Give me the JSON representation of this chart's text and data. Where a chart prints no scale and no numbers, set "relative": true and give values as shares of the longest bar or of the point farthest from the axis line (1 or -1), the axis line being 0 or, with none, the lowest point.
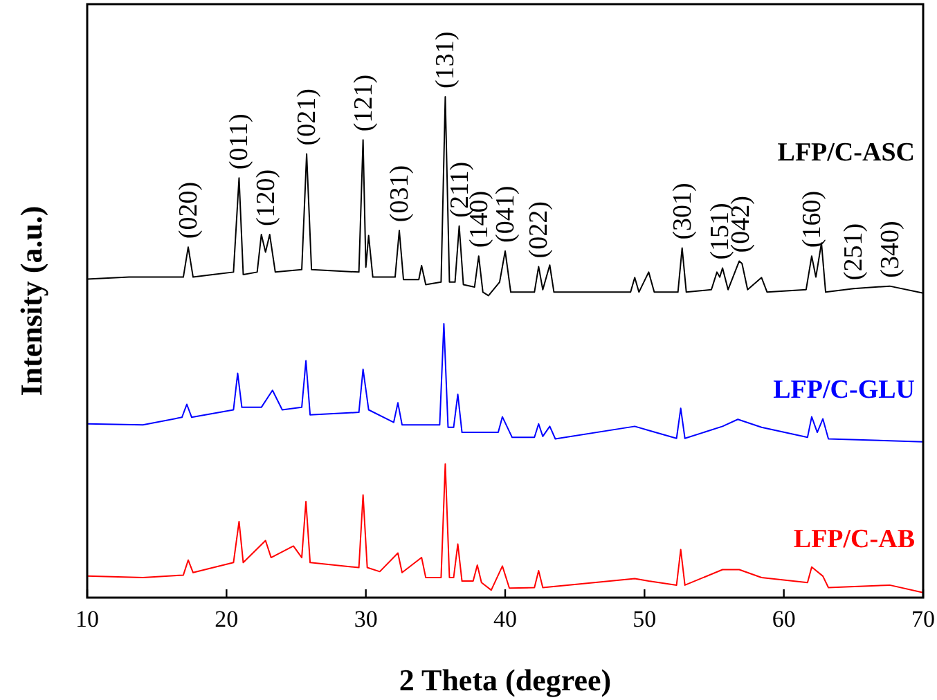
{
  "chart_data": {
    "type": "line",
    "relative": true,
    "xlabel": "2 Theta (degree)",
    "ylabel": "Intensity (a.u.)",
    "xlim": [
      10,
      70
    ],
    "xticks": [
      10,
      20,
      30,
      40,
      50,
      60,
      70
    ],
    "tick_labels": "x",
    "grid": false,
    "marker": "none",
    "line_style": "solid",
    "series": [
      {
        "name": "LFP/C-ASC",
        "color": "#000000",
        "x": [
          10,
          13,
          16,
          16.9,
          17.25,
          17.6,
          19,
          20.5,
          20.9,
          21.2,
          22.2,
          22.5,
          22.8,
          23.1,
          23.5,
          25.4,
          25.75,
          26.1,
          29.5,
          29.8,
          30.0,
          30.2,
          30.5,
          32.1,
          32.4,
          32.7,
          33.8,
          34.0,
          34.3,
          35.4,
          35.7,
          36.0,
          36.4,
          36.7,
          37.0,
          37.8,
          38.1,
          38.4,
          38.8,
          39.6,
          40.0,
          40.4,
          42.1,
          42.4,
          42.7,
          43.2,
          43.5,
          49.0,
          49.3,
          49.6,
          50.3,
          50.7,
          52.4,
          52.7,
          53.0,
          54.8,
          55.2,
          55.4,
          55.6,
          56.0,
          56.8,
          57.0,
          57.4,
          58.4,
          58.8,
          61.6,
          62.0,
          62.3,
          62.7,
          63.0,
          65.0,
          67.6,
          70
        ],
        "values": [
          0.636,
          0.64,
          0.64,
          0.64,
          0.7,
          0.64,
          0.645,
          0.65,
          0.838,
          0.645,
          0.65,
          0.725,
          0.69,
          0.725,
          0.65,
          0.655,
          0.886,
          0.655,
          0.65,
          0.914,
          0.66,
          0.723,
          0.64,
          0.64,
          0.733,
          0.635,
          0.635,
          0.663,
          0.625,
          0.63,
          1.0,
          0.63,
          0.63,
          0.742,
          0.625,
          0.62,
          0.682,
          0.61,
          0.603,
          0.63,
          0.692,
          0.61,
          0.61,
          0.661,
          0.615,
          0.664,
          0.61,
          0.61,
          0.639,
          0.61,
          0.65,
          0.61,
          0.61,
          0.698,
          0.61,
          0.615,
          0.65,
          0.64,
          0.658,
          0.615,
          0.672,
          0.667,
          0.615,
          0.639,
          0.61,
          0.615,
          0.682,
          0.64,
          0.708,
          0.61,
          0.617,
          0.622,
          0.608
        ]
      },
      {
        "name": "LFP/C-GLU",
        "color": "#0000ff",
        "x": [
          10,
          14,
          16.8,
          17.15,
          17.5,
          20.5,
          20.8,
          21.1,
          22.5,
          23.3,
          24,
          25.4,
          25.7,
          26.0,
          29.5,
          29.8,
          30.2,
          32.0,
          32.3,
          32.6,
          35.3,
          35.6,
          35.9,
          36.3,
          36.6,
          36.9,
          39.5,
          39.8,
          40.5,
          42.1,
          42.4,
          42.7,
          43.2,
          43.6,
          49.3,
          50.3,
          52.3,
          52.6,
          52.9,
          55.6,
          56.7,
          58.4,
          61.7,
          62.0,
          62.4,
          62.8,
          63.2,
          70
        ],
        "values": [
          0.347,
          0.345,
          0.36,
          0.386,
          0.36,
          0.375,
          0.448,
          0.38,
          0.38,
          0.414,
          0.375,
          0.38,
          0.473,
          0.365,
          0.37,
          0.456,
          0.375,
          0.35,
          0.389,
          0.345,
          0.345,
          0.547,
          0.34,
          0.34,
          0.406,
          0.33,
          0.33,
          0.361,
          0.32,
          0.32,
          0.347,
          0.322,
          0.342,
          0.317,
          0.342,
          0.334,
          0.318,
          0.378,
          0.318,
          0.342,
          0.356,
          0.34,
          0.32,
          0.361,
          0.33,
          0.357,
          0.317,
          0.311
        ]
      },
      {
        "name": "LFP/C-AB",
        "color": "#ff0000",
        "x": [
          10,
          14,
          16.9,
          17.25,
          17.6,
          20.5,
          20.9,
          21.2,
          22.8,
          23.2,
          24.8,
          25.4,
          25.7,
          26.0,
          29.5,
          29.8,
          30.1,
          31,
          32.3,
          32.6,
          34.0,
          34.3,
          35.4,
          35.7,
          36.0,
          36.3,
          36.6,
          36.9,
          37.7,
          38.0,
          38.3,
          39,
          39.8,
          40.3,
          42.1,
          42.4,
          42.7,
          49.3,
          50.3,
          52.3,
          52.6,
          52.9,
          55.6,
          56.8,
          58.4,
          61.7,
          62.0,
          62.8,
          63.2,
          67.6,
          70
        ],
        "values": [
          0.043,
          0.04,
          0.045,
          0.075,
          0.05,
          0.07,
          0.152,
          0.07,
          0.114,
          0.08,
          0.103,
          0.08,
          0.192,
          0.07,
          0.06,
          0.205,
          0.06,
          0.052,
          0.089,
          0.05,
          0.08,
          0.04,
          0.04,
          0.267,
          0.04,
          0.04,
          0.107,
          0.033,
          0.033,
          0.065,
          0.03,
          0.015,
          0.063,
          0.019,
          0.02,
          0.054,
          0.02,
          0.038,
          0.033,
          0.025,
          0.096,
          0.025,
          0.056,
          0.056,
          0.04,
          0.03,
          0.061,
          0.043,
          0.02,
          0.025,
          0.01
        ]
      }
    ],
    "annotations": [
      {
        "text": "(020)",
        "x": 17.25,
        "y": 0.7
      },
      {
        "text": "(011)",
        "x": 20.9,
        "y": 0.838
      },
      {
        "text": "(120)",
        "x": 22.8,
        "y": 0.725
      },
      {
        "text": "(021)",
        "x": 25.75,
        "y": 0.886
      },
      {
        "text": "(121)",
        "x": 29.8,
        "y": 0.914
      },
      {
        "text": "(031)",
        "x": 32.4,
        "y": 0.733
      },
      {
        "text": "(131)",
        "x": 35.7,
        "y": 1.0
      },
      {
        "text": "(211)",
        "x": 36.7,
        "y": 0.742
      },
      {
        "text": "(140)",
        "x": 38.1,
        "y": 0.682
      },
      {
        "text": "(041)",
        "x": 40.0,
        "y": 0.692
      },
      {
        "text": "(022)",
        "x": 42.4,
        "y": 0.661
      },
      {
        "text": "(301)",
        "x": 52.7,
        "y": 0.698
      },
      {
        "text": "(151)",
        "x": 55.4,
        "y": 0.658
      },
      {
        "text": "(042)",
        "x": 56.9,
        "y": 0.672
      },
      {
        "text": "(160)",
        "x": 62.0,
        "y": 0.682
      },
      {
        "text": "(251)",
        "x": 65.0,
        "y": 0.617
      },
      {
        "text": "(340)",
        "x": 67.6,
        "y": 0.622
      }
    ]
  }
}
